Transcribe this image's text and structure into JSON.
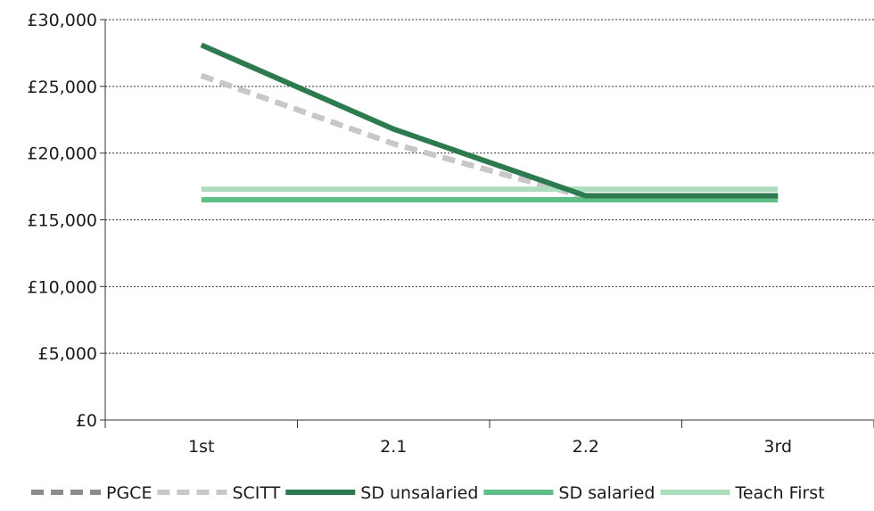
{
  "chart_data": {
    "type": "line",
    "categories": [
      "1st",
      "2.1",
      "2.2",
      "3rd"
    ],
    "ylim": [
      0,
      30000
    ],
    "yticks": [
      0,
      5000,
      10000,
      15000,
      20000,
      25000,
      30000
    ],
    "ytick_labels": [
      "£0",
      "£5,000",
      "£10,000",
      "£15,000",
      "£20,000",
      "£25,000",
      "£30,000"
    ],
    "grid": true,
    "legend_position": "bottom",
    "series": [
      {
        "name": "PGCE",
        "values": [
          25800,
          20700,
          16700,
          16700
        ],
        "color": "#8c8c8c",
        "dash": true
      },
      {
        "name": "SCITT",
        "values": [
          25800,
          20700,
          16700,
          16700
        ],
        "color": "#c8c8c8",
        "dash": true
      },
      {
        "name": "SD unsalaried",
        "values": [
          28100,
          21800,
          16800,
          16800
        ],
        "color": "#2e7a4f",
        "dash": false
      },
      {
        "name": "SD salaried",
        "values": [
          16500,
          16500,
          16500,
          16500
        ],
        "color": "#5fbf86",
        "dash": false
      },
      {
        "name": "Teach First",
        "values": [
          17300,
          17300,
          17300,
          17300
        ],
        "color": "#aeddbd",
        "dash": false
      }
    ]
  }
}
